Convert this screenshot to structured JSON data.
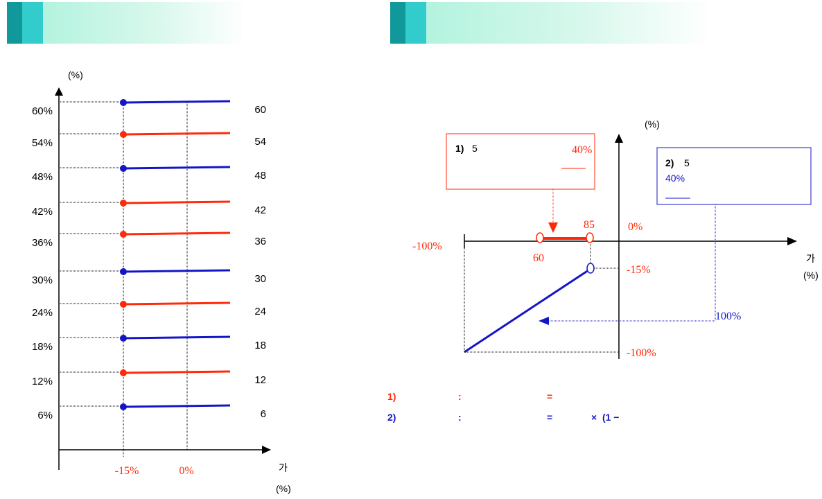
{
  "left_panel": {
    "y_unit": "(%)",
    "rows": [
      {
        "label": "60%",
        "value": "60",
        "color": "#1515c8"
      },
      {
        "label": "54%",
        "value": "54",
        "color": "#ff2a0a"
      },
      {
        "label": "48%",
        "value": "48",
        "color": "#1515c8"
      },
      {
        "label": "42%",
        "value": "42",
        "color": "#ff2a0a"
      },
      {
        "label": "36%",
        "value": "36",
        "color": "#ff2a0a"
      },
      {
        "label": "30%",
        "value": "30",
        "color": "#1515c8"
      },
      {
        "label": "24%",
        "value": "24",
        "color": "#ff2a0a"
      },
      {
        "label": "18%",
        "value": "18",
        "color": "#1515c8"
      },
      {
        "label": "12%",
        "value": "12",
        "color": "#ff2a0a"
      },
      {
        "label": "6%",
        "value": "6",
        "color": "#1515c8"
      }
    ],
    "x_tick_1": "-15%",
    "x_tick_2": "0%",
    "x_axis_char": "가",
    "x_unit": "(%)"
  },
  "right_panel": {
    "y_unit": "(%)",
    "box1": {
      "num": "1)",
      "value": "5",
      "pct": "40%"
    },
    "box2": {
      "num": "2)",
      "value": "5",
      "pct": "40%"
    },
    "labels": {
      "neg100_x": "-100%",
      "p60": "60",
      "p85": "85",
      "zero": "0%",
      "neg15": "-15%",
      "pos100": "100%",
      "neg100_y": "-100%",
      "x_axis_char": "가",
      "x_unit": "(%)"
    },
    "notes": [
      {
        "num": "1)",
        "colon": ":",
        "eq": "="
      },
      {
        "num": "2)",
        "colon": ":",
        "eq": "=",
        "rest": "×  (1 −"
      }
    ]
  },
  "colors": {
    "red": "#ff2a0a",
    "blue": "#1515c8",
    "header_dark": "#11989a",
    "header_light": "#33cccc"
  }
}
